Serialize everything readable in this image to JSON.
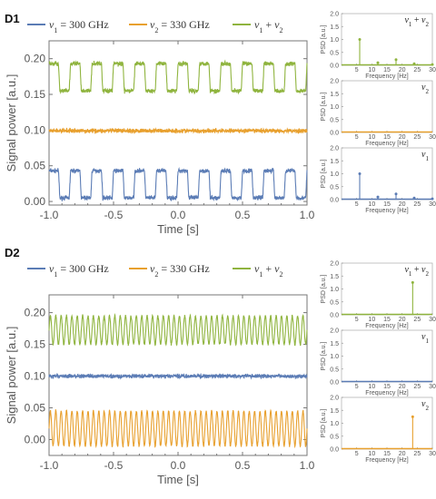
{
  "colors": {
    "blue": "#5b7cb5",
    "orange": "#e8a02e",
    "green": "#8fb43e",
    "frame": "#777777"
  },
  "chart_data": [
    {
      "id": "D1",
      "panel_label": "D1",
      "type": "line",
      "xlabel": "Time [s]",
      "ylabel": "Signal power [a.u.]",
      "xlim": [
        -1.0,
        1.0
      ],
      "ylim": [
        -0.005,
        0.225
      ],
      "xticks": [
        -1.0,
        -0.5,
        0.0,
        0.5,
        1.0
      ],
      "xtick_labels": [
        "-1.0",
        "-0.5",
        "0.0",
        "0.5",
        "1.0"
      ],
      "yticks": [
        0.0,
        0.05,
        0.1,
        0.15,
        0.2
      ],
      "ytick_labels": [
        "0.00",
        "0.05",
        "0.10",
        "0.15",
        "0.20"
      ],
      "legend": [
        "v1 = 300 GHz",
        "v2 = 330 GHz",
        "v1 + v2"
      ],
      "series": [
        {
          "name": "v1 = 300 GHz",
          "color": "blue",
          "shape": "square",
          "low": 0.005,
          "high": 0.043,
          "freq_hz": 6,
          "noise": 0.003
        },
        {
          "name": "v2 = 330 GHz",
          "color": "orange",
          "shape": "flat",
          "level": 0.099,
          "noise": 0.003
        },
        {
          "name": "v1 + v2",
          "color": "green",
          "shape": "square",
          "low": 0.155,
          "high": 0.193,
          "freq_hz": 6,
          "noise": 0.003
        }
      ]
    },
    {
      "id": "D2",
      "panel_label": "D2",
      "type": "line",
      "xlabel": "Time [s]",
      "ylabel": "Signal power [a.u.]",
      "xlim": [
        -1.0,
        1.0
      ],
      "ylim": [
        -0.025,
        0.228
      ],
      "xticks": [
        -1.0,
        -0.5,
        0.0,
        0.5,
        1.0
      ],
      "xtick_labels": [
        "-1.0",
        "-0.5",
        "0.0",
        "0.5",
        "1.0"
      ],
      "yticks": [
        0.0,
        0.05,
        0.1,
        0.15,
        0.2
      ],
      "ytick_labels": [
        "0.00",
        "0.05",
        "0.10",
        "0.15",
        "0.20"
      ],
      "legend": [
        "v1 = 300 GHz",
        "v2 = 330 GHz",
        "v1 + v2"
      ],
      "series": [
        {
          "name": "v1 = 300 GHz",
          "color": "blue",
          "shape": "flat",
          "level": 0.1,
          "noise": 0.003
        },
        {
          "name": "v2 = 330 GHz",
          "color": "orange",
          "shape": "sine",
          "low": -0.01,
          "high": 0.045,
          "freq_hz": 24,
          "noise": 0.002
        },
        {
          "name": "v1 + v2",
          "color": "green",
          "shape": "sine",
          "low": 0.15,
          "high": 0.195,
          "freq_hz": 24,
          "noise": 0.002
        }
      ]
    },
    {
      "id": "D1-psd-sum",
      "type": "bar",
      "title": "v1 + v2",
      "color": "green",
      "xlabel": "Frequency [Hz]",
      "ylabel": "PSD [a.u.]",
      "xlim": [
        0,
        30
      ],
      "ylim": [
        0,
        2.0
      ],
      "xticks": [
        5,
        10,
        15,
        20,
        25,
        30
      ],
      "yticks": [
        0.0,
        0.5,
        1.0,
        1.5,
        2.0
      ],
      "ytick_labels": [
        "0.0",
        "0.5",
        "1.0",
        "1.5",
        "2.0"
      ],
      "x": [
        6,
        12,
        18,
        24,
        30
      ],
      "values": [
        1.0,
        0.1,
        0.22,
        0.06,
        0.03
      ]
    },
    {
      "id": "D1-psd-v2",
      "type": "bar",
      "title": "v2",
      "color": "orange",
      "xlabel": "Frequency [Hz]",
      "ylabel": "PSD [a.u.]",
      "xlim": [
        0,
        30
      ],
      "ylim": [
        0,
        2.0
      ],
      "xticks": [
        5,
        10,
        15,
        20,
        25,
        30
      ],
      "yticks": [
        0.0,
        0.5,
        1.0,
        1.5,
        2.0
      ],
      "ytick_labels": [
        "0.0",
        "0.5",
        "1.0",
        "1.5",
        "2.0"
      ],
      "x": [],
      "values": []
    },
    {
      "id": "D1-psd-v1",
      "type": "bar",
      "title": "v1",
      "color": "blue",
      "xlabel": "Frequency [Hz]",
      "ylabel": "PSD [a.u.]",
      "xlim": [
        0,
        30
      ],
      "ylim": [
        0,
        2.0
      ],
      "xticks": [
        5,
        10,
        15,
        20,
        25,
        30
      ],
      "yticks": [
        0.0,
        0.5,
        1.0,
        1.5,
        2.0
      ],
      "ytick_labels": [
        "0.0",
        "0.5",
        "1.0",
        "1.5",
        "2.0"
      ],
      "x": [
        6,
        12,
        18,
        24,
        30
      ],
      "values": [
        1.0,
        0.1,
        0.22,
        0.06,
        0.03
      ]
    },
    {
      "id": "D2-psd-sum",
      "type": "bar",
      "title": "v1 + v2",
      "color": "green",
      "xlabel": "Frequency [Hz]",
      "ylabel": "PSD [a.u.]",
      "xlim": [
        0,
        30
      ],
      "ylim": [
        0,
        2.0
      ],
      "xticks": [
        5,
        10,
        15,
        20,
        25,
        30
      ],
      "yticks": [
        0.0,
        0.5,
        1.0,
        1.5,
        2.0
      ],
      "ytick_labels": [
        "0.0",
        "0.5",
        "1.0",
        "1.5",
        "2.0"
      ],
      "x": [
        23.5
      ],
      "values": [
        1.25
      ]
    },
    {
      "id": "D2-psd-v1",
      "type": "bar",
      "title": "v1",
      "color": "blue",
      "xlabel": "Frequency [Hz]",
      "ylabel": "PSD [a.u.]",
      "xlim": [
        0,
        30
      ],
      "ylim": [
        0,
        2.0
      ],
      "xticks": [
        5,
        10,
        15,
        20,
        25,
        30
      ],
      "yticks": [
        0.0,
        0.5,
        1.0,
        1.5,
        2.0
      ],
      "ytick_labels": [
        "0.0",
        "0.5",
        "1.0",
        "1.5",
        "2.0"
      ],
      "x": [],
      "values": []
    },
    {
      "id": "D2-psd-v2",
      "type": "bar",
      "title": "v2",
      "color": "orange",
      "xlabel": "Frequency [Hz]",
      "ylabel": "PSD [a.u.]",
      "xlim": [
        0,
        30
      ],
      "ylim": [
        0,
        2.0
      ],
      "xticks": [
        5,
        10,
        15,
        20,
        25,
        30
      ],
      "yticks": [
        0.0,
        0.5,
        1.0,
        1.5,
        2.0
      ],
      "ytick_labels": [
        "0.0",
        "0.5",
        "1.0",
        "1.5",
        "2.0"
      ],
      "x": [
        23.5
      ],
      "values": [
        1.25
      ]
    }
  ]
}
